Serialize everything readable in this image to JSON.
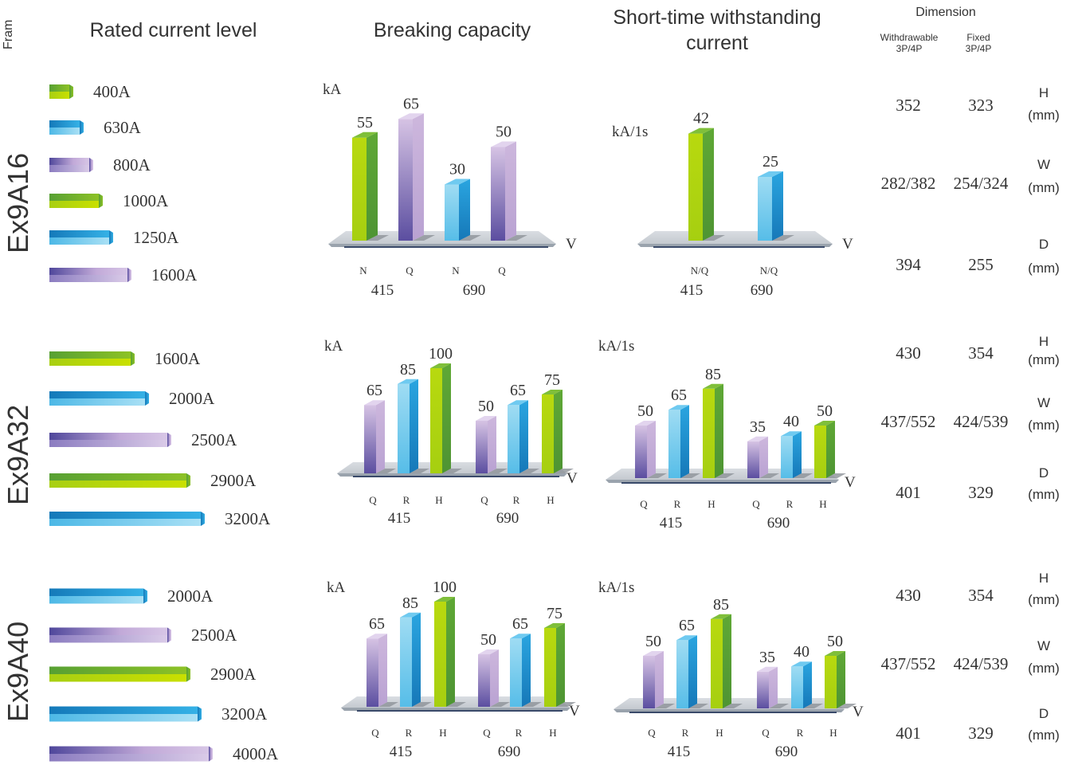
{
  "headers": {
    "fram": "Fram",
    "rated": "Rated current level",
    "breaking": "Breaking capacity",
    "short_line1": "Short-time withstanding",
    "short_line2": "current",
    "dimension": "Dimension",
    "withdrawable_line1": "Withdrawable",
    "withdrawable_line2": "3P/4P",
    "fixed_line1": "Fixed",
    "fixed_line2": "3P/4P"
  },
  "colors": {
    "green": "#6ab82e",
    "blue": "#27a6df",
    "purple": "#c9b3dc"
  },
  "frames": [
    {
      "name": "Ex9A16",
      "ratings": [
        {
          "label": "400A",
          "color": "green"
        },
        {
          "label": "630A",
          "color": "blue"
        },
        {
          "label": "800A",
          "color": "purple"
        },
        {
          "label": "1000A",
          "color": "green"
        },
        {
          "label": "1250A",
          "color": "blue"
        },
        {
          "label": "1600A",
          "color": "purple"
        }
      ],
      "dims": [
        {
          "w": "352",
          "f": "323",
          "axis": "H",
          "unit": "(mm)"
        },
        {
          "w": "282/382",
          "f": "254/324",
          "axis": "W",
          "unit": "(mm)"
        },
        {
          "w": "394",
          "f": "255",
          "axis": "D",
          "unit": "(mm)"
        }
      ]
    },
    {
      "name": "Ex9A32",
      "ratings": [
        {
          "label": "1600A",
          "color": "green"
        },
        {
          "label": "2000A",
          "color": "blue"
        },
        {
          "label": "2500A",
          "color": "purple"
        },
        {
          "label": "2900A",
          "color": "green"
        },
        {
          "label": "3200A",
          "color": "blue"
        }
      ],
      "dims": [
        {
          "w": "430",
          "f": "354",
          "axis": "H",
          "unit": "(mm)"
        },
        {
          "w": "437/552",
          "f": "424/539",
          "axis": "W",
          "unit": "(mm)"
        },
        {
          "w": "401",
          "f": "329",
          "axis": "D",
          "unit": "(mm)"
        }
      ]
    },
    {
      "name": "Ex9A40",
      "ratings": [
        {
          "label": "2000A",
          "color": "blue"
        },
        {
          "label": "2500A",
          "color": "purple"
        },
        {
          "label": "2900A",
          "color": "green"
        },
        {
          "label": "3200A",
          "color": "blue"
        },
        {
          "label": "4000A",
          "color": "purple"
        }
      ],
      "dims": [
        {
          "w": "430",
          "f": "354",
          "axis": "H",
          "unit": "(mm)"
        },
        {
          "w": "437/552",
          "f": "424/539",
          "axis": "W",
          "unit": "(mm)"
        },
        {
          "w": "401",
          "f": "329",
          "axis": "D",
          "unit": "(mm)"
        }
      ]
    }
  ],
  "chart_data": [
    {
      "type": "bar",
      "frame": "Ex9A16",
      "title": "Breaking capacity",
      "ylabel": "kA",
      "xlabel": "V",
      "categories": [
        "N",
        "Q",
        "N",
        "Q"
      ],
      "groups": [
        "415",
        "690"
      ],
      "values": [
        55,
        65,
        30,
        50
      ],
      "colors": [
        "green",
        "purple",
        "blue",
        "purple"
      ]
    },
    {
      "type": "bar",
      "frame": "Ex9A16",
      "title": "Short-time withstanding current",
      "ylabel": "kA/1s",
      "xlabel": "V",
      "categories": [
        "N/Q",
        "N/Q"
      ],
      "groups": [
        "415",
        "690"
      ],
      "values": [
        42,
        25
      ],
      "colors": [
        "green",
        "blue"
      ]
    },
    {
      "type": "bar",
      "frame": "Ex9A32",
      "title": "Breaking capacity",
      "ylabel": "kA",
      "xlabel": "V",
      "categories": [
        "Q",
        "R",
        "H",
        "Q",
        "R",
        "H"
      ],
      "groups": [
        "415",
        "690"
      ],
      "values": [
        65,
        85,
        100,
        50,
        65,
        75
      ],
      "colors": [
        "purple",
        "blue",
        "green",
        "purple",
        "blue",
        "green"
      ]
    },
    {
      "type": "bar",
      "frame": "Ex9A32",
      "title": "Short-time withstanding current",
      "ylabel": "kA/1s",
      "xlabel": "V",
      "categories": [
        "Q",
        "R",
        "H",
        "Q",
        "R",
        "H"
      ],
      "groups": [
        "415",
        "690"
      ],
      "values": [
        50,
        65,
        85,
        35,
        40,
        50
      ],
      "colors": [
        "purple",
        "blue",
        "green",
        "purple",
        "blue",
        "green"
      ]
    },
    {
      "type": "bar",
      "frame": "Ex9A40",
      "title": "Breaking capacity",
      "ylabel": "kA",
      "xlabel": "V",
      "categories": [
        "Q",
        "R",
        "H",
        "Q",
        "R",
        "H"
      ],
      "groups": [
        "415",
        "690"
      ],
      "values": [
        65,
        85,
        100,
        50,
        65,
        75
      ],
      "colors": [
        "purple",
        "blue",
        "green",
        "purple",
        "blue",
        "green"
      ]
    },
    {
      "type": "bar",
      "frame": "Ex9A40",
      "title": "Short-time withstanding current",
      "ylabel": "kA/1s",
      "xlabel": "V",
      "categories": [
        "Q",
        "R",
        "H",
        "Q",
        "R",
        "H"
      ],
      "groups": [
        "415",
        "690"
      ],
      "values": [
        50,
        65,
        85,
        35,
        40,
        50
      ],
      "colors": [
        "purple",
        "blue",
        "green",
        "purple",
        "blue",
        "green"
      ]
    }
  ]
}
